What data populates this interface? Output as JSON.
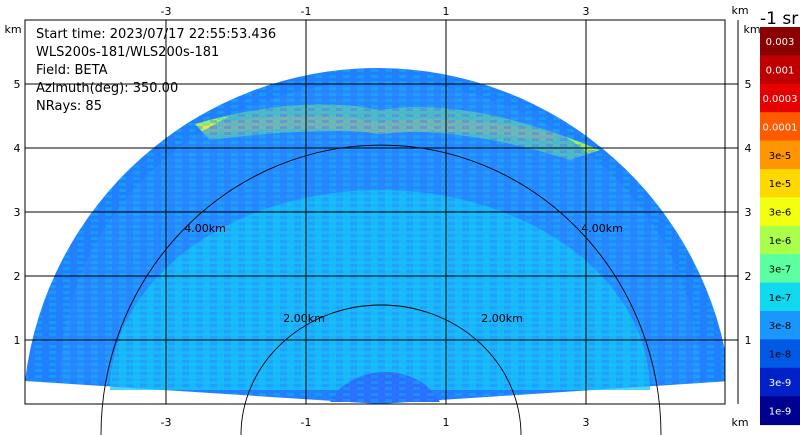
{
  "info": {
    "start_time": "Start time: 2023/07/17 22:55:53.436",
    "instrument": "WLS200s-181/WLS200s-181",
    "field": "Field: BETA",
    "azimuth": "Azimuth(deg): 350.00",
    "nrays": "NRays: 85"
  },
  "axes": {
    "x_unit": "km",
    "y_unit": "km",
    "x_ticks": [
      "-3",
      "-1",
      "1",
      "3"
    ],
    "y_ticks": [
      "1",
      "2",
      "3",
      "4",
      "5"
    ]
  },
  "range_rings": [
    "2.00km",
    "4.00km"
  ],
  "colorbar": {
    "title": "-1 sr",
    "labels": [
      "0.003",
      "0.001",
      "0.0003",
      "0.0001",
      "3e-5",
      "1e-5",
      "3e-6",
      "1e-6",
      "3e-7",
      "1e-7",
      "3e-8",
      "1e-8",
      "3e-9",
      "1e-9"
    ],
    "colors": [
      "#8b0000",
      "#c00000",
      "#e60000",
      "#ff5a00",
      "#ff9600",
      "#ffd800",
      "#f2ff10",
      "#aaff4a",
      "#5cffa0",
      "#10d8ee",
      "#1a96ff",
      "#005ae6",
      "#0020c8",
      "#000090"
    ]
  }
}
